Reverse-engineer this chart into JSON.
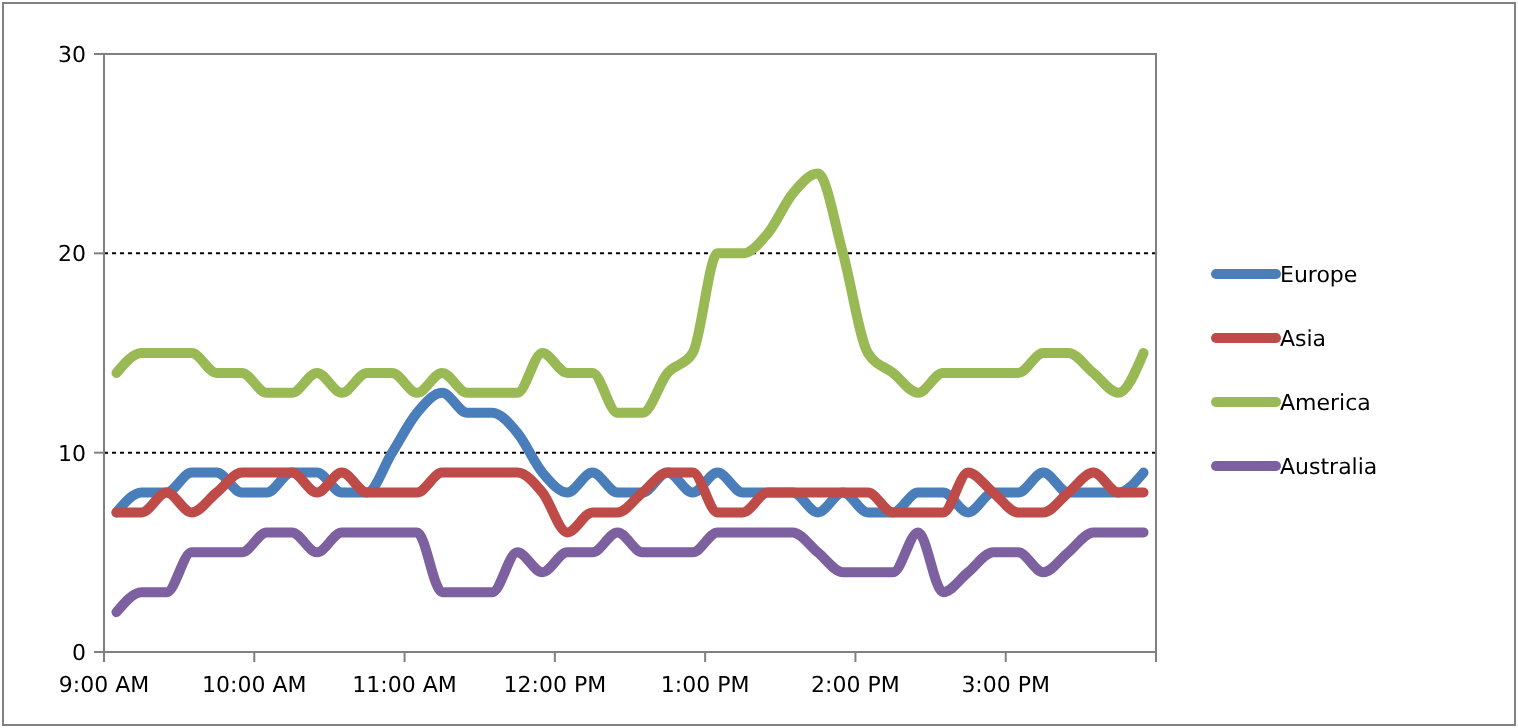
{
  "chart_data": {
    "type": "line",
    "x": [
      9.083,
      9.25,
      9.417,
      9.583,
      9.75,
      9.917,
      10.083,
      10.25,
      10.417,
      10.583,
      10.75,
      10.917,
      11.083,
      11.25,
      11.417,
      11.583,
      11.75,
      11.917,
      12.083,
      12.25,
      12.417,
      12.583,
      12.75,
      12.917,
      13.083,
      13.25,
      13.417,
      13.583,
      13.75,
      13.917,
      14.083,
      14.25,
      14.417,
      14.583,
      14.75,
      14.917,
      15.083,
      15.25,
      15.417,
      15.583,
      15.75,
      15.917
    ],
    "series": [
      {
        "name": "Europe",
        "color": "#4a7ebb",
        "values": [
          7,
          8,
          8,
          9,
          9,
          8,
          8,
          9,
          9,
          8,
          8,
          10,
          12,
          13,
          12,
          12,
          11,
          9,
          8,
          9,
          8,
          8,
          9,
          8,
          9,
          8,
          8,
          8,
          7,
          8,
          7,
          7,
          8,
          8,
          7,
          8,
          8,
          9,
          8,
          8,
          8,
          9
        ]
      },
      {
        "name": "Asia",
        "color": "#be4b48",
        "values": [
          7,
          7,
          8,
          7,
          8,
          9,
          9,
          9,
          8,
          9,
          8,
          8,
          8,
          9,
          9,
          9,
          9,
          8,
          6,
          7,
          7,
          8,
          9,
          9,
          7,
          7,
          8,
          8,
          8,
          8,
          8,
          7,
          7,
          7,
          9,
          8,
          7,
          7,
          8,
          9,
          8,
          8
        ]
      },
      {
        "name": "America",
        "color": "#98b954",
        "values": [
          14,
          15,
          15,
          15,
          14,
          14,
          13,
          13,
          14,
          13,
          14,
          14,
          13,
          14,
          13,
          13,
          13,
          15,
          14,
          14,
          12,
          12,
          14,
          15,
          20,
          20,
          21,
          23,
          24,
          20,
          15,
          14,
          13,
          14,
          14,
          14,
          14,
          15,
          15,
          14,
          13,
          15
        ]
      },
      {
        "name": "Australia",
        "color": "#7d60a0",
        "values": [
          2,
          3,
          3,
          5,
          5,
          5,
          6,
          6,
          5,
          6,
          6,
          6,
          6,
          3,
          3,
          3,
          5,
          4,
          5,
          5,
          6,
          5,
          5,
          5,
          6,
          6,
          6,
          6,
          5,
          4,
          4,
          4,
          6,
          3,
          4,
          5,
          5,
          4,
          5,
          6,
          6,
          6
        ]
      }
    ],
    "xlim": [
      9,
      16
    ],
    "xticks": [
      {
        "value": 9,
        "label": "9:00 AM"
      },
      {
        "value": 10,
        "label": "10:00 AM"
      },
      {
        "value": 11,
        "label": "11:00 AM"
      },
      {
        "value": 12,
        "label": "12:00 PM"
      },
      {
        "value": 13,
        "label": "1:00 PM"
      },
      {
        "value": 14,
        "label": "2:00 PM"
      },
      {
        "value": 15,
        "label": "3:00 PM"
      },
      {
        "value": 16,
        "label": null
      }
    ],
    "ylim": [
      0,
      30
    ],
    "yticks": [
      0,
      10,
      20,
      30
    ],
    "grid": "y",
    "legend": "right",
    "marker": "none",
    "line_style": "solid"
  }
}
